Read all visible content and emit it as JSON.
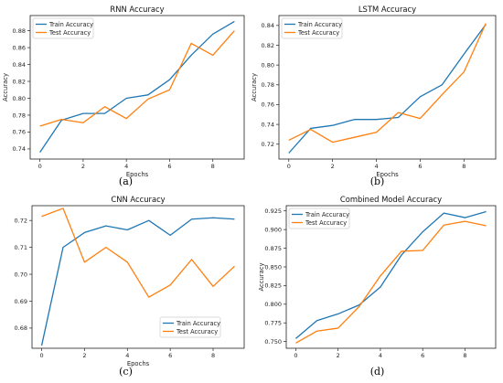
{
  "colors": {
    "train": "#1f77b4",
    "test": "#ff7f0e"
  },
  "chart_data": [
    {
      "type": "line",
      "panel_label": "(a)",
      "title": "RNN Accuracy",
      "xlabel": "Epochs",
      "ylabel": "Accuracy",
      "xlim": [
        -0.45,
        9.45
      ],
      "ylim": [
        0.728,
        0.898
      ],
      "xticks": [
        0,
        2,
        4,
        6,
        8
      ],
      "yticks": [
        0.74,
        0.76,
        0.78,
        0.8,
        0.82,
        0.84,
        0.86,
        0.88
      ],
      "ytick_labels": [
        "0.74",
        "0.76",
        "0.78",
        "0.80",
        "0.82",
        "0.84",
        "0.86",
        "0.88"
      ],
      "legend_position": "upper-left",
      "x": [
        0,
        1,
        2,
        3,
        4,
        5,
        6,
        7,
        8,
        9
      ],
      "series": [
        {
          "name": "Train Accuracy",
          "color_key": "train",
          "values": [
            0.736,
            0.774,
            0.782,
            0.782,
            0.8,
            0.804,
            0.822,
            0.851,
            0.876,
            0.891
          ]
        },
        {
          "name": "Test Accuracy",
          "color_key": "test",
          "values": [
            0.767,
            0.775,
            0.771,
            0.79,
            0.776,
            0.799,
            0.81,
            0.865,
            0.851,
            0.88
          ]
        }
      ]
    },
    {
      "type": "line",
      "panel_label": "(b)",
      "title": "LSTM Accuracy",
      "xlabel": "Epochs",
      "ylabel": "Accuracy",
      "xlim": [
        -0.45,
        9.45
      ],
      "ylim": [
        0.705,
        0.85
      ],
      "xticks": [
        0,
        2,
        4,
        6,
        8
      ],
      "yticks": [
        0.72,
        0.74,
        0.76,
        0.78,
        0.8,
        0.82,
        0.84
      ],
      "ytick_labels": [
        "0.72",
        "0.74",
        "0.76",
        "0.78",
        "0.80",
        "0.82",
        "0.84"
      ],
      "legend_position": "upper-left",
      "x": [
        0,
        1,
        2,
        3,
        4,
        5,
        6,
        7,
        8,
        9
      ],
      "series": [
        {
          "name": "Train Accuracy",
          "color_key": "train",
          "values": [
            0.711,
            0.736,
            0.739,
            0.745,
            0.745,
            0.747,
            0.768,
            0.78,
            0.811,
            0.841
          ]
        },
        {
          "name": "Test Accuracy",
          "color_key": "test",
          "values": [
            0.724,
            0.735,
            0.722,
            0.727,
            0.732,
            0.752,
            0.746,
            0.77,
            0.793,
            0.842
          ]
        }
      ]
    },
    {
      "type": "line",
      "panel_label": "(c)",
      "title": "CNN Accuracy",
      "xlabel": "Epochs",
      "ylabel": "",
      "xlim": [
        -0.45,
        9.45
      ],
      "ylim": [
        0.6725,
        0.7255
      ],
      "xticks": [
        0,
        2,
        4,
        6,
        8
      ],
      "yticks": [
        0.68,
        0.69,
        0.7,
        0.71,
        0.72
      ],
      "ytick_labels": [
        "0.68",
        "0.69",
        "0.70",
        "0.71",
        "0.72"
      ],
      "legend_position": "lower-right",
      "x": [
        0,
        1,
        2,
        3,
        4,
        5,
        6,
        7,
        8,
        9
      ],
      "series": [
        {
          "name": "Train Accuracy",
          "color_key": "train",
          "values": [
            0.6735,
            0.71,
            0.7155,
            0.718,
            0.7165,
            0.72,
            0.7145,
            0.7205,
            0.721,
            0.7205
          ]
        },
        {
          "name": "Test Accuracy",
          "color_key": "test",
          "values": [
            0.7215,
            0.7245,
            0.7045,
            0.71,
            0.7045,
            0.6915,
            0.696,
            0.7055,
            0.6955,
            0.703
          ]
        }
      ]
    },
    {
      "type": "line",
      "panel_label": "(d)",
      "title": "Combined Model Accuracy",
      "xlabel": "",
      "ylabel": "Accuracy",
      "xlim": [
        -0.45,
        9.45
      ],
      "ylim": [
        0.741,
        0.932
      ],
      "xticks": [
        0,
        2,
        4,
        6,
        8
      ],
      "yticks": [
        0.75,
        0.775,
        0.8,
        0.825,
        0.85,
        0.875,
        0.9,
        0.925
      ],
      "ytick_labels": [
        "0.750",
        "0.775",
        "0.800",
        "0.825",
        "0.850",
        "0.875",
        "0.900",
        "0.925"
      ],
      "legend_position": "upper-left",
      "x": [
        0,
        1,
        2,
        3,
        4,
        5,
        6,
        7,
        8,
        9
      ],
      "series": [
        {
          "name": "Train Accuracy",
          "color_key": "train",
          "values": [
            0.754,
            0.778,
            0.787,
            0.799,
            0.823,
            0.866,
            0.897,
            0.922,
            0.916,
            0.924
          ]
        },
        {
          "name": "Test Accuracy",
          "color_key": "test",
          "values": [
            0.748,
            0.764,
            0.768,
            0.797,
            0.838,
            0.871,
            0.872,
            0.906,
            0.911,
            0.905
          ]
        }
      ]
    }
  ]
}
